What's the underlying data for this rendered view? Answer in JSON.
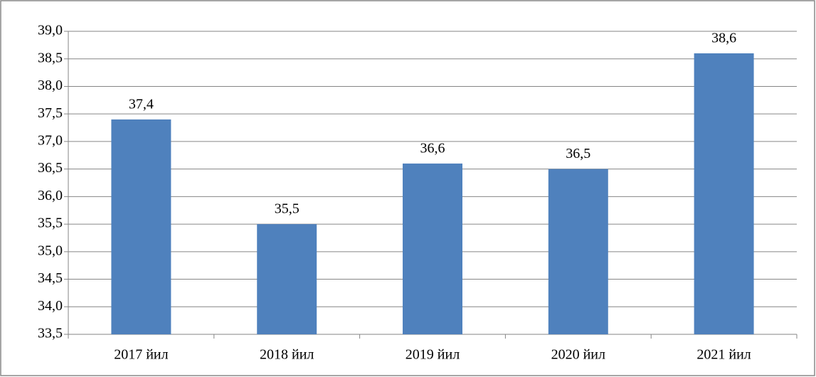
{
  "chart_data": {
    "type": "bar",
    "categories": [
      "2017 йил",
      "2018 йил",
      "2019 йил",
      "2020 йил",
      "2021 йил"
    ],
    "values": [
      37.4,
      35.5,
      36.6,
      36.5,
      38.6
    ],
    "value_labels": [
      "37,4",
      "35,5",
      "36,6",
      "36,5",
      "38,6"
    ],
    "color": "#4f81bd",
    "ylim": [
      33.5,
      39.0
    ],
    "yticks": [
      {
        "value": 33.5,
        "label": "33,5"
      },
      {
        "value": 34.0,
        "label": "34,0"
      },
      {
        "value": 34.5,
        "label": "34,5"
      },
      {
        "value": 35.0,
        "label": "35,0"
      },
      {
        "value": 35.5,
        "label": "35,5"
      },
      {
        "value": 36.0,
        "label": "36,0"
      },
      {
        "value": 36.5,
        "label": "36,5"
      },
      {
        "value": 37.0,
        "label": "37,0"
      },
      {
        "value": 37.5,
        "label": "37,5"
      },
      {
        "value": 38.0,
        "label": "38,0"
      },
      {
        "value": 38.5,
        "label": "38,5"
      },
      {
        "value": 39.0,
        "label": "39,0"
      }
    ],
    "grid": true
  }
}
